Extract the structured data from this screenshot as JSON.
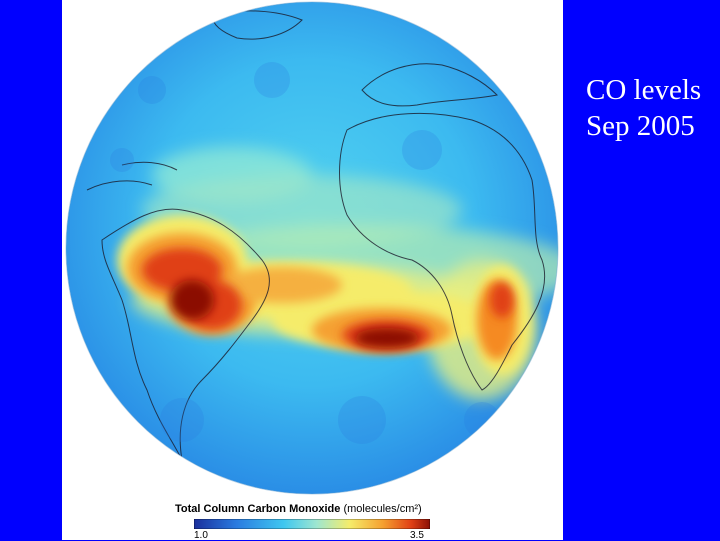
{
  "slide": {
    "caption_line1": "CO levels",
    "caption_line2": "Sep 2005",
    "background_color": "#0000ff",
    "caption_color": "#ffffff"
  },
  "image": {
    "subject": "globe-co-map"
  },
  "legend": {
    "title": "Total Column Carbon Monoxide",
    "unit": "(molecules/cm²)",
    "min_label": "1.0",
    "max_label": "3.5",
    "colors": [
      "#1a2f9c",
      "#2a7be0",
      "#3fc7f0",
      "#9ee6d0",
      "#f5ec6a",
      "#f5a030",
      "#e04015",
      "#8b1005"
    ]
  }
}
